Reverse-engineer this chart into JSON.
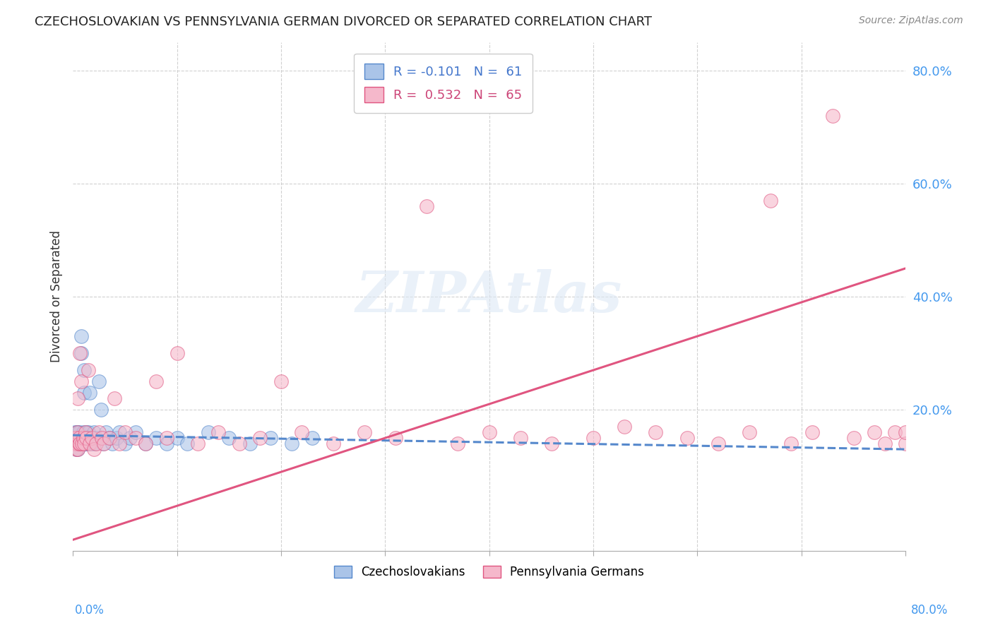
{
  "title": "CZECHOSLOVAKIAN VS PENNSYLVANIA GERMAN DIVORCED OR SEPARATED CORRELATION CHART",
  "source": "Source: ZipAtlas.com",
  "ylabel": "Divorced or Separated",
  "legend_label1": "Czechoslovakians",
  "legend_label2": "Pennsylvania Germans",
  "legend_r1": "R = -0.101",
  "legend_n1": "N =  61",
  "legend_r2": "R =  0.532",
  "legend_n2": "N =  65",
  "watermark": "ZIPAtlas",
  "color_czech": "#aac4e8",
  "color_penn": "#f5b8cb",
  "line_color_czech": "#5588cc",
  "line_color_penn": "#e05580",
  "background": "#ffffff",
  "plot_bg": "#ffffff",
  "grid_color": "#cccccc",
  "xlim": [
    0.0,
    0.8
  ],
  "ylim": [
    -0.05,
    0.85
  ],
  "yticks": [
    0.0,
    0.2,
    0.4,
    0.6,
    0.8
  ],
  "czech_x": [
    0.001,
    0.002,
    0.002,
    0.003,
    0.003,
    0.003,
    0.004,
    0.004,
    0.004,
    0.005,
    0.005,
    0.005,
    0.006,
    0.006,
    0.006,
    0.007,
    0.007,
    0.008,
    0.008,
    0.009,
    0.009,
    0.01,
    0.01,
    0.011,
    0.011,
    0.012,
    0.012,
    0.013,
    0.013,
    0.014,
    0.015,
    0.015,
    0.016,
    0.017,
    0.018,
    0.019,
    0.02,
    0.021,
    0.022,
    0.025,
    0.027,
    0.029,
    0.032,
    0.035,
    0.038,
    0.042,
    0.045,
    0.05,
    0.055,
    0.06,
    0.07,
    0.08,
    0.09,
    0.1,
    0.11,
    0.13,
    0.15,
    0.17,
    0.19,
    0.21,
    0.23
  ],
  "czech_y": [
    0.14,
    0.16,
    0.15,
    0.14,
    0.13,
    0.15,
    0.14,
    0.16,
    0.15,
    0.13,
    0.15,
    0.16,
    0.14,
    0.15,
    0.16,
    0.14,
    0.15,
    0.33,
    0.3,
    0.14,
    0.15,
    0.14,
    0.16,
    0.23,
    0.27,
    0.14,
    0.15,
    0.14,
    0.16,
    0.15,
    0.14,
    0.16,
    0.23,
    0.15,
    0.14,
    0.15,
    0.16,
    0.14,
    0.15,
    0.25,
    0.2,
    0.14,
    0.16,
    0.15,
    0.14,
    0.15,
    0.16,
    0.14,
    0.15,
    0.16,
    0.14,
    0.15,
    0.14,
    0.15,
    0.14,
    0.16,
    0.15,
    0.14,
    0.15,
    0.14,
    0.15
  ],
  "penn_x": [
    0.001,
    0.002,
    0.003,
    0.003,
    0.004,
    0.004,
    0.005,
    0.005,
    0.006,
    0.006,
    0.007,
    0.007,
    0.008,
    0.009,
    0.01,
    0.011,
    0.012,
    0.013,
    0.015,
    0.016,
    0.018,
    0.02,
    0.022,
    0.025,
    0.028,
    0.03,
    0.035,
    0.04,
    0.045,
    0.05,
    0.06,
    0.07,
    0.08,
    0.09,
    0.1,
    0.12,
    0.14,
    0.16,
    0.18,
    0.2,
    0.22,
    0.25,
    0.28,
    0.31,
    0.34,
    0.37,
    0.4,
    0.43,
    0.46,
    0.5,
    0.53,
    0.56,
    0.59,
    0.62,
    0.65,
    0.67,
    0.69,
    0.71,
    0.73,
    0.75,
    0.77,
    0.78,
    0.79,
    0.8,
    0.8
  ],
  "penn_y": [
    0.14,
    0.15,
    0.13,
    0.15,
    0.14,
    0.16,
    0.13,
    0.22,
    0.14,
    0.15,
    0.14,
    0.3,
    0.25,
    0.14,
    0.15,
    0.14,
    0.16,
    0.15,
    0.27,
    0.14,
    0.15,
    0.13,
    0.14,
    0.16,
    0.15,
    0.14,
    0.15,
    0.22,
    0.14,
    0.16,
    0.15,
    0.14,
    0.25,
    0.15,
    0.3,
    0.14,
    0.16,
    0.14,
    0.15,
    0.25,
    0.16,
    0.14,
    0.16,
    0.15,
    0.56,
    0.14,
    0.16,
    0.15,
    0.14,
    0.15,
    0.17,
    0.16,
    0.15,
    0.14,
    0.16,
    0.57,
    0.14,
    0.16,
    0.72,
    0.15,
    0.16,
    0.14,
    0.16,
    0.14,
    0.16
  ],
  "line_czech_x0": 0.0,
  "line_czech_x1": 0.8,
  "line_czech_y0": 0.155,
  "line_czech_y1": 0.13,
  "line_penn_x0": 0.0,
  "line_penn_x1": 0.8,
  "line_penn_y0": -0.03,
  "line_penn_y1": 0.45
}
